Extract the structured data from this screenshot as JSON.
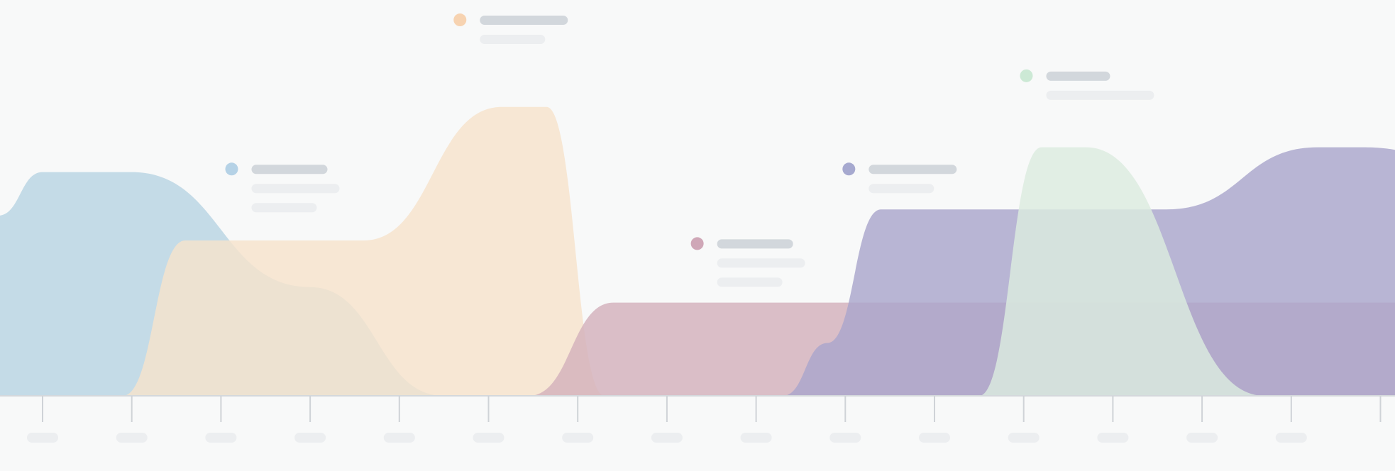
{
  "chart_data": {
    "type": "area",
    "title": "",
    "xlabel": "",
    "ylabel": "",
    "x_count": 16,
    "ylim": [
      0,
      100
    ],
    "grid": false,
    "legend": "inline-callouts",
    "series": [
      {
        "name": "",
        "color": "#c4dbe7",
        "marker_color": "#b5d2e6",
        "points": [
          [
            -0.5,
            58
          ],
          [
            0,
            72
          ],
          [
            1,
            72
          ],
          [
            3,
            35
          ],
          [
            4.5,
            0
          ]
        ]
      },
      {
        "name": "",
        "color": "#f7e3cc",
        "marker_color": "#f7d3b1",
        "points": [
          [
            0.9,
            0
          ],
          [
            1.6,
            50
          ],
          [
            3.6,
            50
          ],
          [
            5.15,
            93
          ],
          [
            5.65,
            93
          ],
          [
            6.3,
            0
          ]
        ]
      },
      {
        "name": "",
        "color": "#d3b1bc",
        "marker_color": "#cfa7b7",
        "points": [
          [
            5.45,
            0
          ],
          [
            6.4,
            30
          ],
          [
            15.6,
            30
          ],
          [
            15.6,
            0
          ]
        ]
      },
      {
        "name": "",
        "color": "#a9a6cc",
        "marker_color": "#a6a9cf",
        "points": [
          [
            8.3,
            0
          ],
          [
            8.8,
            17
          ],
          [
            9.4,
            60
          ],
          [
            12.6,
            60
          ],
          [
            14.3,
            80
          ],
          [
            14.8,
            80
          ],
          [
            15.6,
            78
          ],
          [
            15.6,
            0
          ]
        ]
      },
      {
        "name": "",
        "color": "#dcecdf",
        "marker_color": "#cce9d5",
        "points": [
          [
            10.5,
            0
          ],
          [
            11.2,
            80
          ],
          [
            11.7,
            80
          ],
          [
            13.7,
            0
          ]
        ]
      }
    ],
    "callouts": [
      {
        "series": 0,
        "x": 2.12,
        "y": 73,
        "lines": 3
      },
      {
        "series": 1,
        "x": 4.68,
        "y": 121,
        "lines": 2
      },
      {
        "series": 2,
        "x": 7.34,
        "y": 49,
        "lines": 3
      },
      {
        "series": 3,
        "x": 9.04,
        "y": 73,
        "lines": 2
      },
      {
        "series": 4,
        "x": 11.03,
        "y": 103,
        "lines": 2
      }
    ],
    "tick_labels": [
      "",
      "",
      "",
      "",
      "",
      "",
      "",
      "",
      "",
      "",
      "",
      "",
      "",
      "",
      "",
      ""
    ]
  }
}
